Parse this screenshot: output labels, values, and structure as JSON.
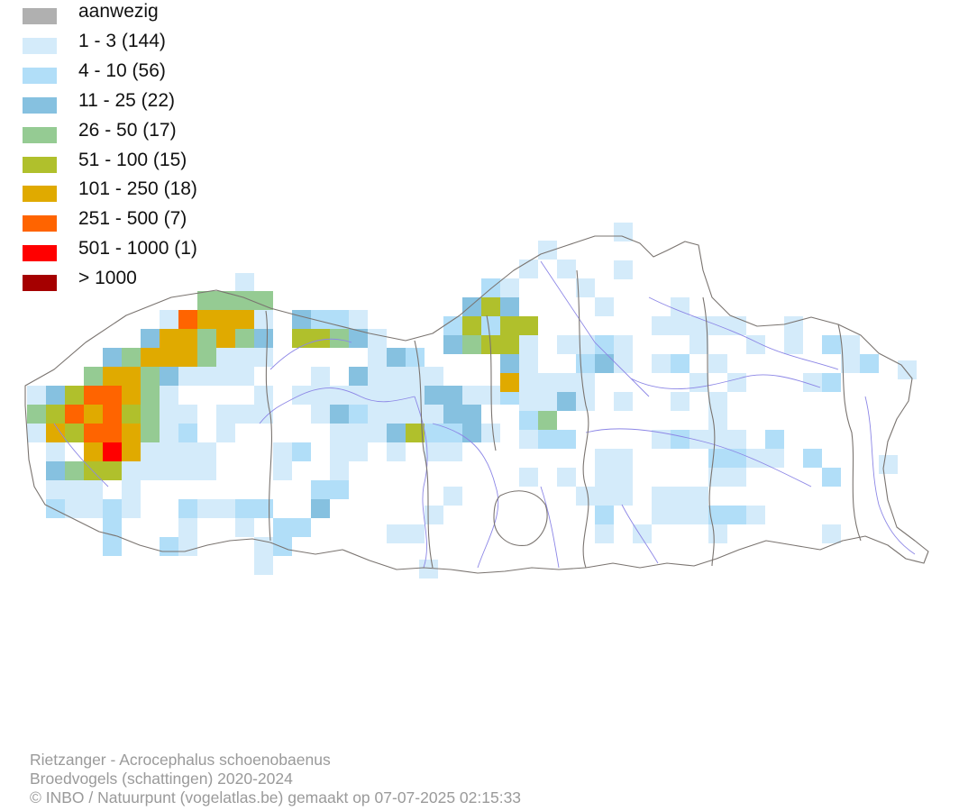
{
  "legend": [
    {
      "label": "aanwezig",
      "color": "#b0b0b0"
    },
    {
      "label": "1 - 3 (144)",
      "color": "#d4ebfa"
    },
    {
      "label": "4 - 10 (56)",
      "color": "#b1def8"
    },
    {
      "label": "11 - 25 (22)",
      "color": "#86c1e0"
    },
    {
      "label": "26 - 50 (17)",
      "color": "#95cb93"
    },
    {
      "label": "51 - 100 (15)",
      "color": "#b0c02c"
    },
    {
      "label": "101 - 250 (18)",
      "color": "#e0aa00"
    },
    {
      "label": "251 - 500 (7)",
      "color": "#ff6400"
    },
    {
      "label": "501 - 1000 (1)",
      "color": "#ff0000"
    },
    {
      "label": "> 1000",
      "color": "#a50000"
    }
  ],
  "footer": {
    "line1": "Rietzanger - Acrocephalus schoenobaenus",
    "line2": "Broedvogels (schattingen) 2020-2024",
    "line3": "© INBO / Natuurpunt (vogelatlas.be) gemaakt op 07-07-2025 02:15:33"
  },
  "map": {
    "region": "Flanders",
    "colors": {
      "border": "#7a7470",
      "river": "#8c86e6"
    },
    "grid_cell_km": 5
  }
}
